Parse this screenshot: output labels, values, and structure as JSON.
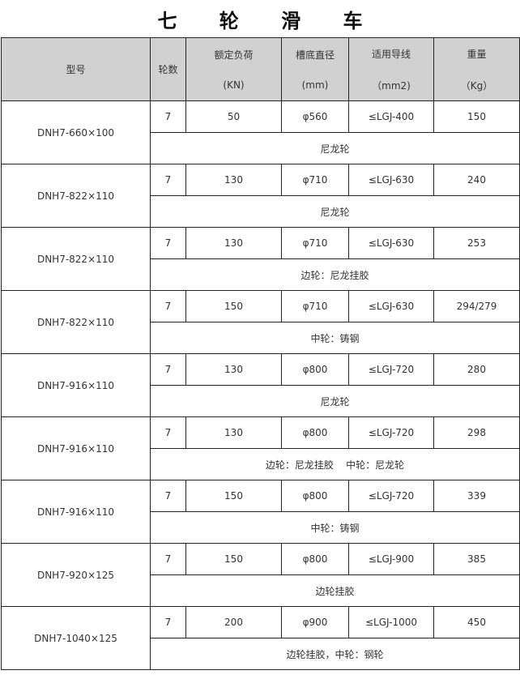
{
  "title": "七 轮 滑 车",
  "headers": [
    {
      "line1": "型号",
      "line2": ""
    },
    {
      "line1": "轮数",
      "line2": ""
    },
    {
      "line1": "额定负荷",
      "line2": "(KN)"
    },
    {
      "line1": "槽底直径",
      "line2": "(mm)"
    },
    {
      "line1": "适用导线",
      "line2": "（mm2)"
    },
    {
      "line1": "重量",
      "line2": "（Kg）"
    }
  ],
  "rows": [
    {
      "model": "DNH7-660×100",
      "wheels": "7",
      "load": "50",
      "diameter": "φ560",
      "conductor": "≤LGJ-400",
      "weight": "150",
      "note": "尼龙轮"
    },
    {
      "model": "DNH7-822×110",
      "wheels": "7",
      "load": "130",
      "diameter": "φ710",
      "conductor": "≤LGJ-630",
      "weight": "240",
      "note": "尼龙轮"
    },
    {
      "model": "DNH7-822×110",
      "wheels": "7",
      "load": "130",
      "diameter": "φ710",
      "conductor": "≤LGJ-630",
      "weight": "253",
      "note": "边轮：尼龙挂胶"
    },
    {
      "model": "DNH7-822×110",
      "wheels": "7",
      "load": "150",
      "diameter": "φ710",
      "conductor": "≤LGJ-630",
      "weight": "294/279",
      "note": "中轮：铸钢"
    },
    {
      "model": "DNH7-916×110",
      "wheels": "7",
      "load": "130",
      "diameter": "φ800",
      "conductor": "≤LGJ-720",
      "weight": "280",
      "note": "尼龙轮"
    },
    {
      "model": "DNH7-916×110",
      "wheels": "7",
      "load": "130",
      "diameter": "φ800",
      "conductor": "≤LGJ-720",
      "weight": "298",
      "note": "边轮：尼龙挂胶    中轮：尼龙轮"
    },
    {
      "model": "DNH7-916×110",
      "wheels": "7",
      "load": "150",
      "diameter": "φ800",
      "conductor": "≤LGJ-720",
      "weight": "339",
      "note": "中轮：铸钢"
    },
    {
      "model": "DNH7-920×125",
      "wheels": "7",
      "load": "150",
      "diameter": "φ800",
      "conductor": "≤LGJ-900",
      "weight": "385",
      "note": "边轮挂胶"
    },
    {
      "model": "DNH7-1040×125",
      "wheels": "7",
      "load": "200",
      "diameter": "φ900",
      "conductor": "≤LGJ-1000",
      "weight": "450",
      "note": "边轮挂胶，中轮：钢轮"
    }
  ]
}
